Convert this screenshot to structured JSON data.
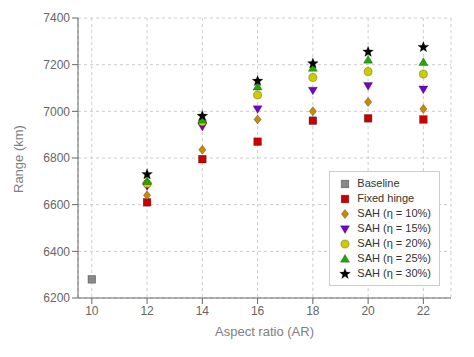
{
  "chart_data": {
    "type": "scatter",
    "xlabel": "Aspect ratio (AR)",
    "ylabel": "Range (km)",
    "x": [
      10,
      12,
      14,
      16,
      18,
      20,
      22
    ],
    "series": [
      {
        "name": "Baseline",
        "color": "#888888",
        "marker": "square",
        "values": [
          6280,
          null,
          null,
          null,
          null,
          null,
          null
        ]
      },
      {
        "name": "Fixed hinge",
        "color": "#cc0000",
        "marker": "square",
        "values": [
          null,
          6610,
          6795,
          6870,
          6960,
          6970,
          6965
        ]
      },
      {
        "name": "SAH (η = 10%)",
        "color": "#cc8800",
        "marker": "diamond",
        "values": [
          null,
          6640,
          6835,
          6965,
          7000,
          7040,
          7010
        ]
      },
      {
        "name": "SAH (η = 15%)",
        "color": "#7700cc",
        "marker": "triangle-down",
        "values": [
          null,
          6680,
          6935,
          7010,
          7090,
          7110,
          7095
        ]
      },
      {
        "name": "SAH (η = 20%)",
        "color": "#cccc00",
        "marker": "circle",
        "values": [
          null,
          6690,
          6955,
          7070,
          7145,
          7170,
          7160
        ]
      },
      {
        "name": "SAH (η = 25%)",
        "color": "#22aa00",
        "marker": "triangle-up",
        "values": [
          null,
          6700,
          6963,
          7105,
          7185,
          7220,
          7210
        ]
      },
      {
        "name": "SAH (η = 30%)",
        "color": "#000000",
        "marker": "star",
        "values": [
          null,
          6730,
          6980,
          7130,
          7205,
          7255,
          7275
        ]
      }
    ],
    "xlim": [
      9.5,
      23.0
    ],
    "ylim": [
      6200,
      7400
    ],
    "xticks": [
      10,
      12,
      14,
      16,
      18,
      20,
      22
    ],
    "yticks": [
      6200,
      6400,
      6600,
      6800,
      7000,
      7200,
      7400
    ],
    "grid": true,
    "legend": "lower right"
  }
}
